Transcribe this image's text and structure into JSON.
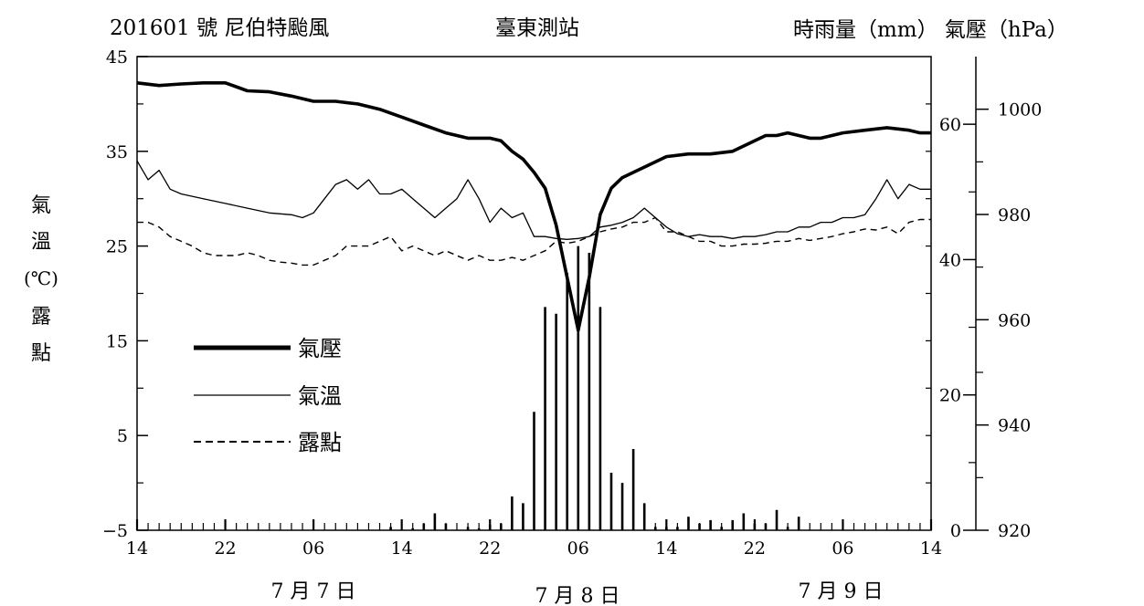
{
  "chart_data": {
    "type": "line",
    "title": "201601 號 尼伯特颱風",
    "station": "臺東測站",
    "right_axis_title": "時雨量（mm） 氣壓（hPa）",
    "left_axis_title": [
      "氣",
      "溫",
      "(℃)",
      "露",
      "點"
    ],
    "date_labels": [
      "7 月 7 日",
      "7 月 8 日",
      "7 月 9 日"
    ],
    "x_hours": [
      0,
      48
    ],
    "x_tick_labels": [
      {
        "h": 0,
        "label": "14"
      },
      {
        "h": 8,
        "label": "22"
      },
      {
        "h": 16,
        "label": "06"
      },
      {
        "h": 24,
        "label": "14"
      },
      {
        "h": 32,
        "label": "22"
      },
      {
        "h": 40,
        "label": "06"
      },
      {
        "h": 48,
        "label": "14"
      },
      {
        "h": 56,
        "label": "22"
      },
      {
        "h": 64,
        "label": "06"
      },
      {
        "h": 72,
        "label": "14"
      }
    ],
    "y_left": {
      "min": -5,
      "max": 45,
      "ticks": [
        -5,
        5,
        15,
        25,
        35,
        45
      ],
      "tick_labels": [
        "−5",
        "5",
        "15",
        "25",
        "35",
        "45"
      ]
    },
    "y_rain": {
      "min": 0,
      "max": 70,
      "ticks": [
        0,
        20,
        40,
        60
      ],
      "tick_labels": [
        "0",
        "20",
        "40",
        "60"
      ]
    },
    "y_pressure": {
      "min": 920,
      "max": 1010,
      "ticks": [
        920,
        940,
        960,
        980,
        1000
      ],
      "tick_labels": [
        "920",
        "940",
        "960",
        "980",
        "1000"
      ]
    },
    "legend": [
      {
        "label": "氣壓",
        "style": "thick"
      },
      {
        "label": "氣溫",
        "style": "thin"
      },
      {
        "label": "露點",
        "style": "dashed"
      }
    ],
    "series": [
      {
        "name": "氣壓",
        "axis": "pressure",
        "points": [
          [
            0,
            1005
          ],
          [
            2,
            1004.5
          ],
          [
            4,
            1004.8
          ],
          [
            6,
            1005
          ],
          [
            8,
            1005
          ],
          [
            10,
            1003.5
          ],
          [
            12,
            1003.3
          ],
          [
            14,
            1002.5
          ],
          [
            16,
            1001.5
          ],
          [
            18,
            1001.5
          ],
          [
            20,
            1001
          ],
          [
            22,
            1000
          ],
          [
            24,
            998.5
          ],
          [
            26,
            997
          ],
          [
            28,
            995.5
          ],
          [
            30,
            994.5
          ],
          [
            32,
            994.5
          ],
          [
            33,
            994
          ],
          [
            34,
            992
          ],
          [
            35,
            990.5
          ],
          [
            36,
            988
          ],
          [
            37,
            985
          ],
          [
            38,
            978
          ],
          [
            39,
            968
          ],
          [
            40,
            958
          ],
          [
            41,
            968
          ],
          [
            42,
            980
          ],
          [
            43,
            985
          ],
          [
            44,
            987
          ],
          [
            46,
            989
          ],
          [
            48,
            991
          ],
          [
            50,
            991.5
          ],
          [
            52,
            991.5
          ],
          [
            54,
            992
          ],
          [
            56,
            994
          ],
          [
            57,
            995
          ],
          [
            58,
            995
          ],
          [
            59,
            995.5
          ],
          [
            60,
            995
          ],
          [
            61,
            994.5
          ],
          [
            62,
            994.5
          ],
          [
            63,
            995
          ],
          [
            64,
            995.5
          ],
          [
            66,
            996
          ],
          [
            68,
            996.5
          ],
          [
            70,
            996
          ],
          [
            71,
            995.5
          ],
          [
            72,
            995.5
          ]
        ]
      },
      {
        "name": "氣溫",
        "axis": "left",
        "points": [
          [
            0,
            34
          ],
          [
            0.5,
            33
          ],
          [
            1,
            32
          ],
          [
            2,
            33
          ],
          [
            3,
            31
          ],
          [
            4,
            30.5
          ],
          [
            6,
            30
          ],
          [
            8,
            29.5
          ],
          [
            10,
            29
          ],
          [
            12,
            28.5
          ],
          [
            14,
            28.3
          ],
          [
            15,
            28
          ],
          [
            16,
            28.5
          ],
          [
            17,
            30
          ],
          [
            18,
            31.5
          ],
          [
            19,
            32
          ],
          [
            20,
            31
          ],
          [
            21,
            32
          ],
          [
            22,
            30.5
          ],
          [
            23,
            30.5
          ],
          [
            24,
            31
          ],
          [
            25,
            30
          ],
          [
            26,
            29
          ],
          [
            27,
            28
          ],
          [
            28,
            29
          ],
          [
            29,
            30
          ],
          [
            30,
            32
          ],
          [
            31,
            30
          ],
          [
            32,
            27.5
          ],
          [
            33,
            29
          ],
          [
            34,
            28
          ],
          [
            35,
            28.5
          ],
          [
            36,
            26
          ],
          [
            37,
            26
          ],
          [
            38,
            25.8
          ],
          [
            39,
            25.7
          ],
          [
            40,
            25.8
          ],
          [
            41,
            26
          ],
          [
            42,
            27
          ],
          [
            43,
            27.2
          ],
          [
            44,
            27.5
          ],
          [
            45,
            28
          ],
          [
            46,
            29
          ],
          [
            47,
            28
          ],
          [
            48,
            27
          ],
          [
            49,
            26.3
          ],
          [
            50,
            26
          ],
          [
            51,
            26.2
          ],
          [
            52,
            26
          ],
          [
            53,
            26
          ],
          [
            54,
            25.8
          ],
          [
            55,
            26
          ],
          [
            56,
            26
          ],
          [
            57,
            26.2
          ],
          [
            58,
            26.5
          ],
          [
            59,
            26.5
          ],
          [
            60,
            27
          ],
          [
            61,
            27
          ],
          [
            62,
            27.5
          ],
          [
            63,
            27.5
          ],
          [
            64,
            28
          ],
          [
            65,
            28
          ],
          [
            66,
            28.3
          ],
          [
            67,
            30
          ],
          [
            68,
            32
          ],
          [
            69,
            30
          ],
          [
            70,
            31.5
          ],
          [
            71,
            31
          ],
          [
            72,
            31
          ]
        ]
      },
      {
        "name": "露點",
        "axis": "left",
        "points": [
          [
            0,
            27.5
          ],
          [
            1,
            27.5
          ],
          [
            2,
            27
          ],
          [
            3,
            26
          ],
          [
            4,
            25.5
          ],
          [
            5,
            25
          ],
          [
            6,
            24.3
          ],
          [
            7,
            24
          ],
          [
            8,
            24
          ],
          [
            9,
            24
          ],
          [
            10,
            24.3
          ],
          [
            11,
            24
          ],
          [
            12,
            23.5
          ],
          [
            13,
            23.3
          ],
          [
            14,
            23.2
          ],
          [
            15,
            23
          ],
          [
            16,
            23
          ],
          [
            17,
            23.5
          ],
          [
            18,
            24
          ],
          [
            19,
            25
          ],
          [
            20,
            25
          ],
          [
            21,
            25
          ],
          [
            22,
            25.5
          ],
          [
            23,
            26
          ],
          [
            24,
            24.5
          ],
          [
            25,
            25
          ],
          [
            26,
            24.5
          ],
          [
            27,
            24
          ],
          [
            28,
            24.5
          ],
          [
            29,
            24
          ],
          [
            30,
            23.5
          ],
          [
            31,
            24
          ],
          [
            32,
            23.5
          ],
          [
            33,
            23.5
          ],
          [
            34,
            23.8
          ],
          [
            35,
            23.5
          ],
          [
            36,
            24
          ],
          [
            37,
            24.5
          ],
          [
            38,
            25.5
          ],
          [
            39,
            25.3
          ],
          [
            40,
            25.5
          ],
          [
            41,
            26
          ],
          [
            42,
            26.5
          ],
          [
            43,
            26.8
          ],
          [
            44,
            27
          ],
          [
            45,
            27.5
          ],
          [
            46,
            27.5
          ],
          [
            47,
            28
          ],
          [
            48,
            26.5
          ],
          [
            49,
            26.5
          ],
          [
            50,
            26
          ],
          [
            51,
            25.5
          ],
          [
            52,
            25.5
          ],
          [
            53,
            25
          ],
          [
            54,
            25
          ],
          [
            55,
            25.2
          ],
          [
            56,
            25.2
          ],
          [
            57,
            25.3
          ],
          [
            58,
            25.5
          ],
          [
            59,
            25.5
          ],
          [
            60,
            25.8
          ],
          [
            61,
            25.6
          ],
          [
            62,
            25.8
          ],
          [
            63,
            26
          ],
          [
            64,
            26.3
          ],
          [
            65,
            26.5
          ],
          [
            66,
            26.8
          ],
          [
            67,
            26.7
          ],
          [
            68,
            27
          ],
          [
            69,
            26.3
          ],
          [
            70,
            27.5
          ],
          [
            71,
            27.8
          ],
          [
            72,
            27.8
          ]
        ]
      },
      {
        "name": "時雨量",
        "axis": "rain",
        "kind": "bars",
        "points": [
          [
            23,
            0.5
          ],
          [
            25,
            0.3
          ],
          [
            26,
            1
          ],
          [
            27,
            2.5
          ],
          [
            28,
            1
          ],
          [
            30,
            0.5
          ],
          [
            31,
            0.3
          ],
          [
            32,
            0.8
          ],
          [
            33,
            1
          ],
          [
            34,
            5
          ],
          [
            35,
            4
          ],
          [
            36,
            17.5
          ],
          [
            37,
            33
          ],
          [
            38,
            32
          ],
          [
            39,
            38
          ],
          [
            40,
            42
          ],
          [
            41,
            41
          ],
          [
            42,
            33
          ],
          [
            43,
            8.5
          ],
          [
            44,
            7
          ],
          [
            45,
            12
          ],
          [
            46,
            4
          ],
          [
            47,
            0.5
          ],
          [
            48,
            0.5
          ],
          [
            49,
            0.5
          ],
          [
            50,
            2
          ],
          [
            51,
            1
          ],
          [
            52,
            1.5
          ],
          [
            53,
            0.5
          ],
          [
            54,
            1.5
          ],
          [
            55,
            2.5
          ],
          [
            56,
            1
          ],
          [
            57,
            1
          ],
          [
            58,
            3
          ],
          [
            59,
            0.5
          ],
          [
            60,
            2
          ]
        ]
      }
    ]
  }
}
